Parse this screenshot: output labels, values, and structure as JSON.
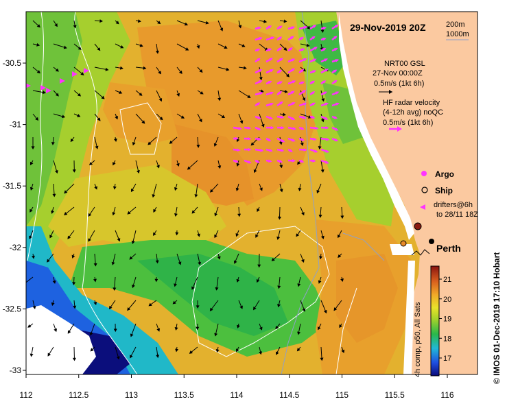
{
  "title": "29-Nov-2019 20Z",
  "depth_legend": {
    "contour_1": "200m",
    "contour_2": "1000m"
  },
  "current_legend": {
    "line1": "NRT00 GSL",
    "line2": "27-Nov 00:00Z",
    "line3": "0.5m/s (1kt 6h)"
  },
  "hf_legend": {
    "line1": "HF radar velocity",
    "line2": "(4-12h avg) noQC",
    "line3": "0.5m/s (1kt 6h)"
  },
  "symbols": {
    "argo": "Argo",
    "ship": "Ship",
    "drifters_line1": "drifters@6h",
    "drifters_line2": "to 28/11 18Z"
  },
  "city": "Perth",
  "colorbar": {
    "label": "4h comp, p50, All Sats",
    "ticks": [
      "17",
      "18",
      "19",
      "20",
      "21"
    ]
  },
  "credit": "© IMOS 01-Dec-2019 17:10 Hobart",
  "axes": {
    "x_ticks": [
      "112",
      "112.5",
      "113",
      "113.5",
      "114",
      "114.5",
      "115",
      "115.5",
      "116"
    ],
    "y_ticks": [
      "-30.5",
      "-31",
      "-31.5",
      "-32",
      "-32.5",
      "-33"
    ]
  },
  "colors": {
    "land": "#fbc9a0",
    "warm": "#e89a2c",
    "mid": "#a8d22a",
    "cool": "#2ab84a",
    "cold": "#1a5ae0",
    "hf_arrow": "#ff33ff"
  }
}
